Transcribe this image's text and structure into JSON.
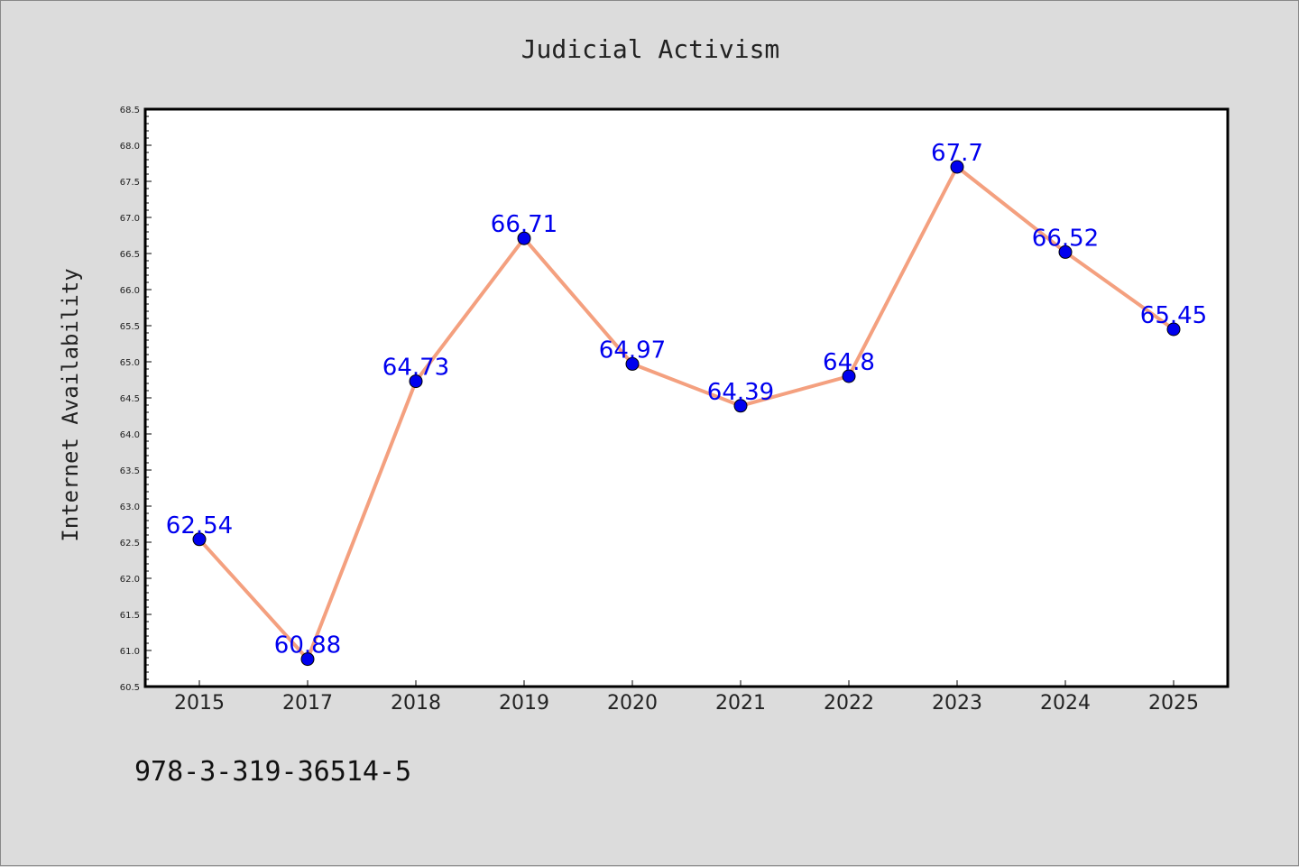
{
  "chart_data": {
    "type": "line",
    "title": "Judicial Activism",
    "xlabel": "",
    "ylabel": "Internet Availability",
    "categories": [
      "2015",
      "2017",
      "2018",
      "2019",
      "2020",
      "2021",
      "2022",
      "2023",
      "2024",
      "2025"
    ],
    "series": [
      {
        "values": [
          62.54,
          60.88,
          64.73,
          66.71,
          64.97,
          64.39,
          64.8,
          67.7,
          66.52,
          65.45
        ],
        "data_labels": [
          "62.54",
          "60.88",
          "64.73",
          "66.71",
          "64.97",
          "64.39",
          "64.8",
          "67.7",
          "66.52",
          "65.45"
        ]
      }
    ],
    "ylim": [
      60.5,
      68.5
    ],
    "yticks": [
      "60.5",
      "61.0",
      "61.5",
      "62.0",
      "62.5",
      "63.0",
      "63.5",
      "64.0",
      "64.5",
      "65.0",
      "65.5",
      "66.0",
      "66.5",
      "67.0",
      "67.5",
      "68.0",
      "68.5"
    ],
    "grid": false,
    "colors": {
      "line": "#f4a07f",
      "marker": "#0000ee",
      "label": "#0000ee",
      "plot_bg": "#ffffff",
      "page_bg": "#dcdcdc"
    }
  },
  "footer": {
    "isbn": "978-3-319-36514-5"
  }
}
